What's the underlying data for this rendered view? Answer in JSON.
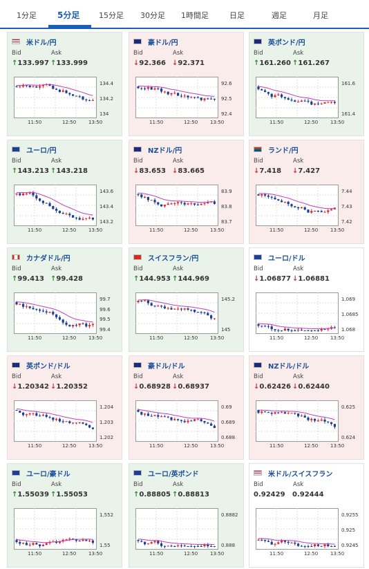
{
  "tabs": [
    {
      "label": "1分足"
    },
    {
      "label": "5分足"
    },
    {
      "label": "15分足"
    },
    {
      "label": "30分足"
    },
    {
      "label": "1時間足"
    },
    {
      "label": "日足"
    },
    {
      "label": "週足"
    },
    {
      "label": "月足"
    }
  ],
  "active_tab": "5分足",
  "labels": {
    "bid": "Bid",
    "ask": "Ask"
  },
  "colors": {
    "up_bg": "#eaf3ea",
    "down_bg": "#fbecec",
    "up_arrow": "#2a8a2a",
    "down_arrow": "#c83232",
    "ma_line": "#c03cc0",
    "accent": "#1a5fb4"
  },
  "cards": [
    {
      "pair": "米ドル/円",
      "dir": "up",
      "bid_arrow": "↑",
      "bid": "133.997",
      "ask_arrow": "↑",
      "ask": "133.999",
      "flag": "us",
      "chart_data": {
        "type": "candlestick",
        "x_ticks": [
          "11:50",
          "12:50",
          "13:50"
        ],
        "y_ticks": [
          "134.4",
          "134.2",
          "134"
        ],
        "ylim": [
          133.9,
          134.5
        ]
      }
    },
    {
      "pair": "豪ドル/円",
      "dir": "down",
      "bid_arrow": "↓",
      "bid": "92.366",
      "ask_arrow": "↓",
      "ask": "92.371",
      "flag": "au",
      "chart_data": {
        "type": "candlestick",
        "x_ticks": [
          "11:50",
          "12:50",
          "13:50"
        ],
        "y_ticks": [
          "92.6",
          "92.5",
          "92.4"
        ],
        "ylim": [
          92.33,
          92.65
        ]
      }
    },
    {
      "pair": "英ポンド/円",
      "dir": "up",
      "bid_arrow": "↑",
      "bid": "161.260",
      "ask_arrow": "↑",
      "ask": "161.267",
      "flag": "gb",
      "chart_data": {
        "type": "candlestick",
        "x_ticks": [
          "11:50",
          "12:50",
          "13:50"
        ],
        "y_ticks": [
          "161.6",
          "161.4"
        ],
        "ylim": [
          161.2,
          161.75
        ]
      }
    },
    {
      "pair": "ユーロ/円",
      "dir": "up",
      "bid_arrow": "↑",
      "bid": "143.213",
      "ask_arrow": "↑",
      "ask": "143.218",
      "flag": "eu",
      "chart_data": {
        "type": "candlestick",
        "x_ticks": [
          "11:50",
          "12:50",
          "13:50"
        ],
        "y_ticks": [
          "143.6",
          "143.4",
          "143.2"
        ],
        "ylim": [
          143.15,
          143.7
        ]
      }
    },
    {
      "pair": "NZドル/円",
      "dir": "down",
      "bid_arrow": "↓",
      "bid": "83.653",
      "ask_arrow": "↓",
      "ask": "83.665",
      "flag": "nz",
      "chart_data": {
        "type": "candlestick",
        "x_ticks": [
          "11:50",
          "12:50",
          "13:50"
        ],
        "y_ticks": [
          "83.9",
          "83.8",
          "83.7"
        ],
        "ylim": [
          83.63,
          83.95
        ]
      }
    },
    {
      "pair": "ランド/円",
      "dir": "down",
      "bid_arrow": "↓",
      "bid": "7.418",
      "ask_arrow": "↓",
      "ask": "7.427",
      "flag": "za",
      "chart_data": {
        "type": "candlestick",
        "x_ticks": [
          "11:50",
          "12:50",
          "13:50"
        ],
        "y_ticks": [
          "7.44",
          "7.43",
          "7.42"
        ],
        "ylim": [
          7.415,
          7.445
        ]
      }
    },
    {
      "pair": "カナダドル/円",
      "dir": "up",
      "bid_arrow": "↑",
      "bid": "99.413",
      "ask_arrow": "↑",
      "ask": "99.428",
      "flag": "ca",
      "chart_data": {
        "type": "candlestick",
        "x_ticks": [
          "11:50",
          "12:50",
          "13:50"
        ],
        "y_ticks": [
          "99.7",
          "99.6",
          "99.5",
          "99.4"
        ],
        "ylim": [
          99.37,
          99.75
        ]
      }
    },
    {
      "pair": "スイスフラン/円",
      "dir": "up",
      "bid_arrow": "↑",
      "bid": "144.953",
      "ask_arrow": "↑",
      "ask": "144.969",
      "flag": "ch",
      "chart_data": {
        "type": "candlestick",
        "x_ticks": [
          "11:50",
          "12:50",
          "13:50"
        ],
        "y_ticks": [
          "145.2",
          "145"
        ],
        "ylim": [
          144.9,
          145.5
        ]
      }
    },
    {
      "pair": "ユーロ/ドル",
      "dir": "neutral",
      "bid_arrow": "↓",
      "bid": "1.06877",
      "ask_arrow": "↓",
      "ask": "1.06881",
      "flag": "eu",
      "chart_data": {
        "type": "candlestick",
        "x_ticks": [
          "11:50",
          "12:50",
          "13:50"
        ],
        "y_ticks": [
          "1.069",
          "1.0685",
          "1.068"
        ],
        "ylim": [
          1.0675,
          1.0694
        ]
      }
    },
    {
      "pair": "英ポンド/ドル",
      "dir": "down",
      "bid_arrow": "↓",
      "bid": "1.20342",
      "ask_arrow": "↓",
      "ask": "1.20352",
      "flag": "gb",
      "chart_data": {
        "type": "candlestick",
        "x_ticks": [
          "11:50",
          "12:50",
          "13:50"
        ],
        "y_ticks": [
          "1.204",
          "1.203",
          "1.202"
        ],
        "ylim": [
          1.2017,
          1.2043
        ]
      }
    },
    {
      "pair": "豪ドル/ドル",
      "dir": "down",
      "bid_arrow": "↓",
      "bid": "0.68928",
      "ask_arrow": "↓",
      "ask": "0.68937",
      "flag": "au",
      "chart_data": {
        "type": "candlestick",
        "x_ticks": [
          "11:50",
          "12:50",
          "13:50"
        ],
        "y_ticks": [
          "0.69",
          "0.689",
          "0.688"
        ],
        "ylim": [
          0.6875,
          0.6904
        ]
      }
    },
    {
      "pair": "NZドル/ドル",
      "dir": "down",
      "bid_arrow": "↓",
      "bid": "0.62426",
      "ask_arrow": "↓",
      "ask": "0.62440",
      "flag": "nz",
      "chart_data": {
        "type": "candlestick",
        "x_ticks": [
          "11:50",
          "12:50",
          "13:50"
        ],
        "y_ticks": [
          "0.625",
          "0.624"
        ],
        "ylim": [
          0.6233,
          0.6254
        ]
      }
    },
    {
      "pair": "ユーロ/豪ドル",
      "dir": "up",
      "bid_arrow": "↑",
      "bid": "1.55039",
      "ask_arrow": "↑",
      "ask": "1.55053",
      "flag": "eu",
      "chart_data": {
        "type": "candlestick",
        "x_ticks": [
          "11:50",
          "12:50",
          "13:50"
        ],
        "y_ticks": [
          "1.552",
          "1.55"
        ],
        "ylim": [
          1.5495,
          1.5528
        ]
      }
    },
    {
      "pair": "ユーロ/英ポンド",
      "dir": "up",
      "bid_arrow": "↑",
      "bid": "0.88805",
      "ask_arrow": "↑",
      "ask": "0.88813",
      "flag": "eu",
      "chart_data": {
        "type": "candlestick",
        "x_ticks": [
          "11:50",
          "12:50",
          "13:50"
        ],
        "y_ticks": [
          "0.8882",
          "0.888"
        ],
        "ylim": [
          0.8878,
          0.8884
        ]
      }
    },
    {
      "pair": "米ドル/スイスフラン",
      "dir": "neutral",
      "bid_arrow": "",
      "bid": "0.92429",
      "ask_arrow": "",
      "ask": "0.92444",
      "flag": "us",
      "chart_data": {
        "type": "candlestick",
        "x_ticks": [
          "11:50",
          "12:50",
          "13:50"
        ],
        "y_ticks": [
          "0.9255",
          "0.925",
          "0.9245"
        ],
        "ylim": [
          0.9241,
          0.9257
        ]
      }
    }
  ]
}
